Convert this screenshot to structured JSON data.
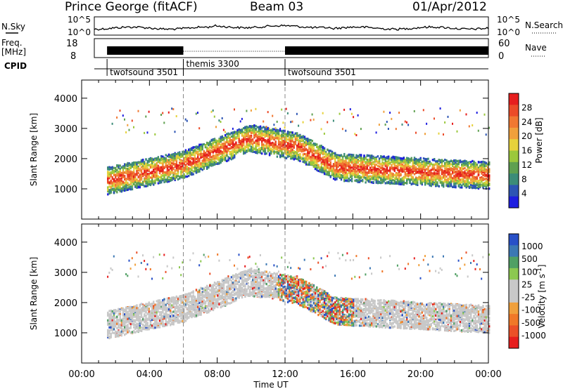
{
  "header": {
    "station": "Prince George (fitACF)",
    "beam": "Beam 03",
    "date": "01/Apr/2012"
  },
  "top_panels": {
    "nsky_label": "N.Sky",
    "nsearch_label": "N.Search",
    "noise_ticks_left": [
      "10^5",
      "10^0"
    ],
    "noise_ticks_right": [
      "10^5",
      "10^0"
    ],
    "freq_label_line1": "Freq.",
    "freq_label_line2": "[MHz]",
    "freq_ticks": [
      "18",
      "8"
    ],
    "nave_label": "Nave",
    "nave_ticks": [
      "60",
      "0"
    ],
    "cpid_label": "CPID"
  },
  "cpid_segments": [
    {
      "start_hour": 1.5,
      "end_hour": 6.0,
      "label": "twofsound 3501"
    },
    {
      "start_hour": 6.0,
      "end_hour": 12.0,
      "label": "themis 3300"
    },
    {
      "start_hour": 12.0,
      "end_hour": 24.0,
      "label": "twofsound 3501"
    }
  ],
  "chart_data": [
    {
      "type": "heatmap",
      "name": "power",
      "ylabel": "Slant Range [km]",
      "xlabel": "",
      "x_ticks": [
        "00:00",
        "04:00",
        "08:00",
        "12:00",
        "16:00",
        "20:00",
        "00:00"
      ],
      "y_ticks": [
        1000,
        2000,
        3000,
        4000
      ],
      "ylim": [
        0,
        4600
      ],
      "xlim_hours": [
        0,
        24
      ],
      "colorbar": {
        "label": "Power [dB]",
        "ticks": [
          "4",
          "8",
          "12",
          "16",
          "20",
          "24",
          "28"
        ],
        "colors": [
          "#1e1ee0",
          "#2d55b4",
          "#3c8c78",
          "#5fa050",
          "#9bc83c",
          "#e6d23c",
          "#f0a03c",
          "#f07832",
          "#eb4b28",
          "#e61e1e"
        ]
      }
    },
    {
      "type": "heatmap",
      "name": "velocity",
      "ylabel": "Slant Range [km]",
      "xlabel": "Time UT",
      "x_ticks": [
        "00:00",
        "04:00",
        "08:00",
        "12:00",
        "16:00",
        "20:00",
        "00:00"
      ],
      "y_ticks": [
        1000,
        2000,
        3000,
        4000
      ],
      "ylim": [
        0,
        4600
      ],
      "xlim_hours": [
        0,
        24
      ],
      "colorbar": {
        "label": "Velocity [m s-1]",
        "ticks": [
          "1000",
          "500",
          "100",
          "25",
          "-25",
          "-100",
          "-500",
          "-1000"
        ],
        "colors": [
          "#2850c8",
          "#3c78b4",
          "#50a064",
          "#8cc850",
          "#c8c8c8",
          "#c8c8c8",
          "#f0a03c",
          "#f07828",
          "#eb5028",
          "#e61e1e"
        ]
      }
    }
  ],
  "colors": {
    "ground_scatter": "#c0c0c0"
  }
}
